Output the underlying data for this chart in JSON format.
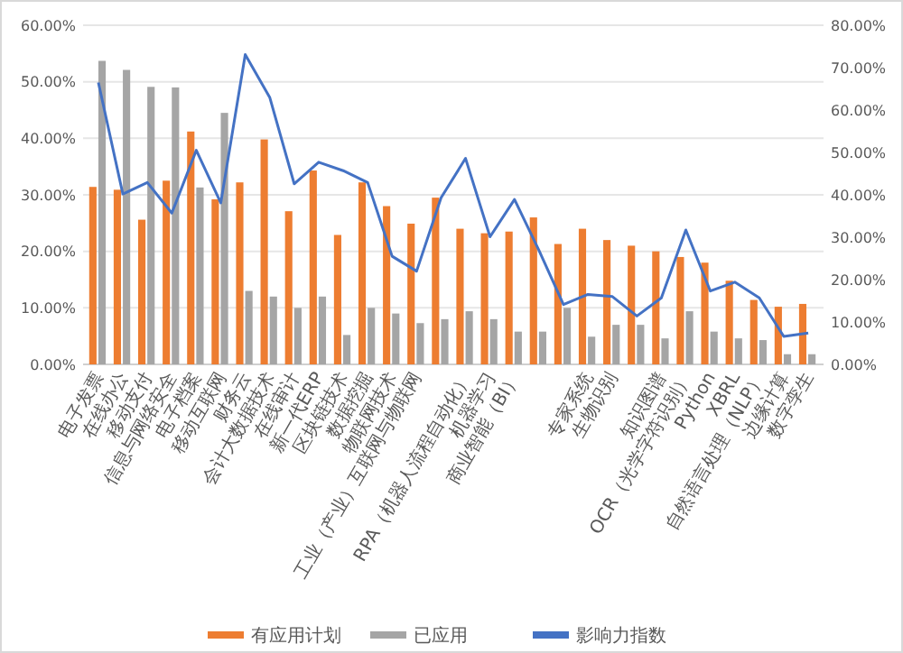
{
  "chart_data": {
    "type": "bar",
    "categories": [
      "电子发票",
      "在线办公",
      "移动支付",
      "信息与网络安全",
      "电子档案",
      "移动互联网",
      "财务云",
      "会计大数据技术",
      "在线审计",
      "新一代ERP",
      "区块链技术",
      "数据挖掘",
      "物联网技术",
      "工业（产业）互联网与物联网",
      null,
      "RPA（机器人流程自动化）",
      "机器学习",
      "商业智能（BI）",
      null,
      null,
      "专家系统",
      "生物识别",
      null,
      "知识图谱",
      "OCR（光学字符识别）",
      "Python",
      "XBRL",
      "自然语言处理（NLP）",
      "边缘计算",
      "数字孪生"
    ],
    "series": [
      {
        "name": "有应用计划",
        "color": "#ed7d31",
        "values": [
          31.4,
          30.9,
          25.6,
          32.5,
          41.2,
          29.2,
          32.2,
          39.8,
          27.1,
          34.3,
          22.9,
          32.2,
          28,
          24.9,
          29.5,
          24,
          23.2,
          23.5,
          26,
          21.3,
          24,
          22,
          21,
          20,
          19,
          18,
          14.8,
          11.4,
          10.2,
          10.7
        ]
      },
      {
        "name": "已应用",
        "color": "#a5a5a5",
        "values": [
          53.7,
          52.1,
          49.1,
          49,
          31.3,
          44.5,
          13,
          12,
          10,
          12,
          5.2,
          10,
          9,
          7.3,
          8,
          9.4,
          8,
          5.8,
          5.8,
          10,
          4.9,
          7,
          7,
          4.6,
          9.4,
          5.8,
          4.6,
          4.3,
          1.8,
          1.8
        ]
      },
      {
        "name": "影响力指数",
        "type": "line",
        "axis": "y2",
        "color": "#4472c4",
        "values": [
          66.5,
          40.2,
          42.9,
          35.7,
          50.5,
          38.1,
          73.1,
          63,
          42.6,
          47.7,
          45.7,
          42.9,
          25.5,
          22,
          39.3,
          48.6,
          30.1,
          38.9,
          26.9,
          14.1,
          16.5,
          16,
          11.4,
          15.7,
          31.7,
          17.3,
          19.4,
          15.7,
          6.6,
          7.4
        ]
      }
    ],
    "ylim": [
      0,
      60
    ],
    "yticks": [
      {
        "value": 0,
        "label": "0.00%"
      },
      {
        "value": 10,
        "label": "10.00%"
      },
      {
        "value": 20,
        "label": "20.00%"
      },
      {
        "value": 30,
        "label": "30.00%"
      },
      {
        "value": 40,
        "label": "40.00%"
      },
      {
        "value": 50,
        "label": "50.00%"
      },
      {
        "value": 60,
        "label": "60.00%"
      }
    ],
    "y2lim": [
      0,
      80
    ],
    "y2ticks": [
      {
        "value": 0,
        "label": "0.00%"
      },
      {
        "value": 10,
        "label": "10.00%"
      },
      {
        "value": 20,
        "label": "20.00%"
      },
      {
        "value": 30,
        "label": "30.00%"
      },
      {
        "value": 40,
        "label": "40.00%"
      },
      {
        "value": 50,
        "label": "50.00%"
      },
      {
        "value": 60,
        "label": "60.00%"
      },
      {
        "value": 70,
        "label": "70.00%"
      },
      {
        "value": 80,
        "label": "80.00%"
      }
    ],
    "grid": "y",
    "legend": "bottom",
    "marker": "none",
    "line_style": "solid"
  }
}
